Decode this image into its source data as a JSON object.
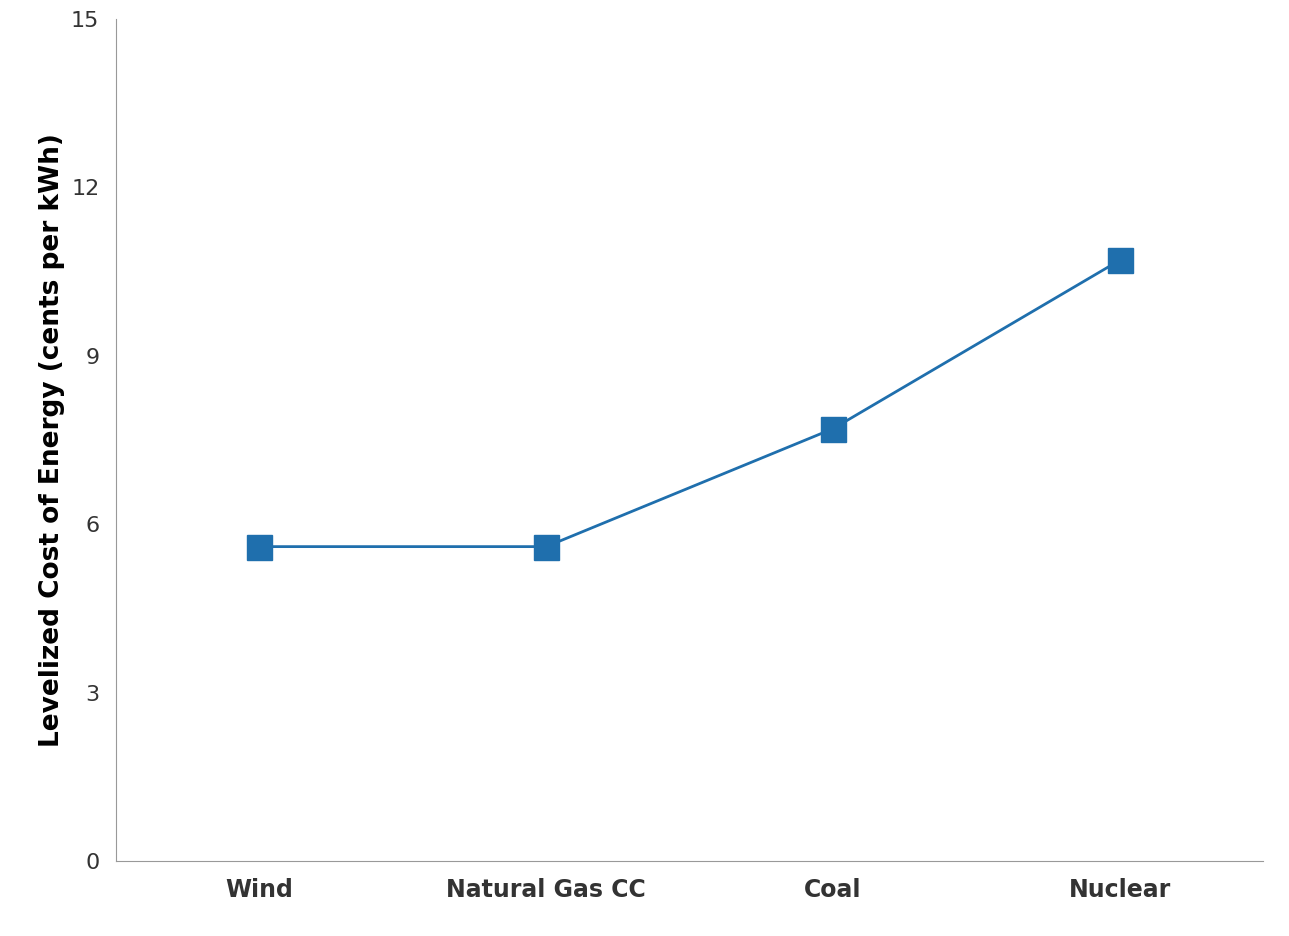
{
  "chart_data": {
    "type": "line",
    "ylabel": "Levelized Cost of Energy (cents per kWh)",
    "categories": [
      "Wind",
      "Natural Gas CC",
      "Coal",
      "Nuclear"
    ],
    "values": [
      5.6,
      5.6,
      7.7,
      10.7
    ],
    "color": "#1f6fad",
    "marker": "square",
    "line_style": "solid",
    "ylim": [
      0,
      15
    ],
    "yticks": [
      0,
      3,
      6,
      9,
      12,
      15
    ],
    "grid": false
  }
}
